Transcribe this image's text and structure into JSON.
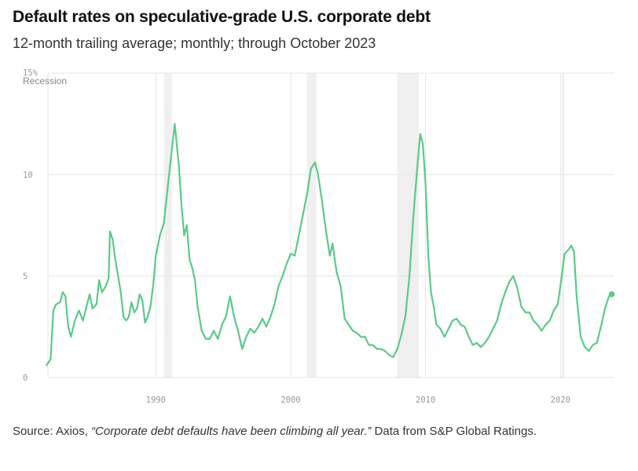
{
  "header": {
    "title": "Default rates on speculative-grade U.S. corporate debt",
    "subtitle": "12-month trailing average; monthly; through October 2023"
  },
  "source": {
    "prefix": "Source: Axios, ",
    "article": "“Corporate debt defaults have been climbing all year.”",
    "suffix": " Data from S&P Global Ratings."
  },
  "colors": {
    "line": "#5cc98a",
    "grid": "#e6e6e6",
    "recession": "#f0f0f0",
    "tick": "#999999"
  },
  "chart_data": {
    "type": "line",
    "title": "Default rates on speculative-grade U.S. corporate debt",
    "subtitle": "12-month trailing average; monthly; through October 2023",
    "ylim": [
      0,
      15
    ],
    "xlim": [
      1982,
      2024
    ],
    "y_ticks": [
      {
        "value": 0,
        "label": "0"
      },
      {
        "value": 5,
        "label": "5"
      },
      {
        "value": 10,
        "label": "10"
      },
      {
        "value": 15,
        "label": "15%"
      }
    ],
    "x_ticks": [
      {
        "value": 1990,
        "label": "1990"
      },
      {
        "value": 2000,
        "label": "2000"
      },
      {
        "value": 2010,
        "label": "2010"
      },
      {
        "value": 2020,
        "label": "2020"
      }
    ],
    "grid": true,
    "recession_label": "Recession",
    "recessions": [
      [
        1990.6,
        1991.2
      ],
      [
        2001.2,
        2001.9
      ],
      [
        2007.9,
        2009.5
      ],
      [
        2020.1,
        2020.3
      ]
    ],
    "series": [
      {
        "name": "",
        "end_marker": true,
        "points": [
          [
            1981.9,
            0.6
          ],
          [
            1982.2,
            0.9
          ],
          [
            1982.4,
            3.3
          ],
          [
            1982.6,
            3.6
          ],
          [
            1982.9,
            3.7
          ],
          [
            1983.1,
            4.2
          ],
          [
            1983.3,
            4.0
          ],
          [
            1983.5,
            2.5
          ],
          [
            1983.7,
            2.0
          ],
          [
            1984.0,
            2.8
          ],
          [
            1984.3,
            3.3
          ],
          [
            1984.6,
            2.8
          ],
          [
            1984.9,
            3.6
          ],
          [
            1985.1,
            4.1
          ],
          [
            1985.3,
            3.4
          ],
          [
            1985.6,
            3.6
          ],
          [
            1985.8,
            4.8
          ],
          [
            1986.0,
            4.2
          ],
          [
            1986.3,
            4.5
          ],
          [
            1986.5,
            4.9
          ],
          [
            1986.6,
            7.2
          ],
          [
            1986.8,
            6.8
          ],
          [
            1987.0,
            5.8
          ],
          [
            1987.2,
            5.0
          ],
          [
            1987.4,
            4.2
          ],
          [
            1987.6,
            3.0
          ],
          [
            1987.8,
            2.8
          ],
          [
            1988.0,
            3.0
          ],
          [
            1988.2,
            3.7
          ],
          [
            1988.4,
            3.2
          ],
          [
            1988.6,
            3.4
          ],
          [
            1988.8,
            4.1
          ],
          [
            1989.0,
            3.8
          ],
          [
            1989.2,
            2.7
          ],
          [
            1989.4,
            3.0
          ],
          [
            1989.6,
            3.5
          ],
          [
            1989.8,
            4.5
          ],
          [
            1990.0,
            6.0
          ],
          [
            1990.3,
            7.0
          ],
          [
            1990.6,
            7.6
          ],
          [
            1990.9,
            9.5
          ],
          [
            1991.2,
            11.3
          ],
          [
            1991.4,
            12.5
          ],
          [
            1991.7,
            10.5
          ],
          [
            1991.9,
            8.5
          ],
          [
            1992.1,
            7.0
          ],
          [
            1992.3,
            7.5
          ],
          [
            1992.5,
            5.8
          ],
          [
            1992.7,
            5.4
          ],
          [
            1992.9,
            4.8
          ],
          [
            1993.1,
            3.5
          ],
          [
            1993.4,
            2.3
          ],
          [
            1993.7,
            1.9
          ],
          [
            1994.0,
            1.9
          ],
          [
            1994.3,
            2.3
          ],
          [
            1994.6,
            1.9
          ],
          [
            1994.9,
            2.6
          ],
          [
            1995.2,
            3.0
          ],
          [
            1995.5,
            4.0
          ],
          [
            1995.8,
            3.0
          ],
          [
            1996.1,
            2.3
          ],
          [
            1996.4,
            1.4
          ],
          [
            1996.7,
            2.0
          ],
          [
            1997.0,
            2.4
          ],
          [
            1997.3,
            2.2
          ],
          [
            1997.6,
            2.5
          ],
          [
            1997.9,
            2.9
          ],
          [
            1998.2,
            2.5
          ],
          [
            1998.5,
            3.0
          ],
          [
            1998.8,
            3.6
          ],
          [
            1999.1,
            4.5
          ],
          [
            1999.4,
            5.0
          ],
          [
            1999.7,
            5.6
          ],
          [
            2000.0,
            6.1
          ],
          [
            2000.3,
            6.0
          ],
          [
            2000.6,
            7.0
          ],
          [
            2000.9,
            8.0
          ],
          [
            2001.2,
            9.0
          ],
          [
            2001.5,
            10.3
          ],
          [
            2001.8,
            10.6
          ],
          [
            2002.0,
            10.1
          ],
          [
            2002.3,
            8.8
          ],
          [
            2002.6,
            7.3
          ],
          [
            2002.9,
            6.0
          ],
          [
            2003.1,
            6.6
          ],
          [
            2003.4,
            5.2
          ],
          [
            2003.7,
            4.5
          ],
          [
            2004.0,
            2.9
          ],
          [
            2004.3,
            2.6
          ],
          [
            2004.6,
            2.3
          ],
          [
            2004.9,
            2.2
          ],
          [
            2005.2,
            2.0
          ],
          [
            2005.5,
            2.0
          ],
          [
            2005.8,
            1.6
          ],
          [
            2006.1,
            1.6
          ],
          [
            2006.4,
            1.4
          ],
          [
            2006.7,
            1.4
          ],
          [
            2007.0,
            1.3
          ],
          [
            2007.3,
            1.1
          ],
          [
            2007.6,
            1.0
          ],
          [
            2007.9,
            1.4
          ],
          [
            2008.2,
            2.1
          ],
          [
            2008.5,
            3.0
          ],
          [
            2008.8,
            5.0
          ],
          [
            2009.1,
            8.0
          ],
          [
            2009.4,
            10.5
          ],
          [
            2009.6,
            12.0
          ],
          [
            2009.8,
            11.5
          ],
          [
            2010.0,
            9.5
          ],
          [
            2010.2,
            6.0
          ],
          [
            2010.4,
            4.2
          ],
          [
            2010.6,
            3.5
          ],
          [
            2010.8,
            2.6
          ],
          [
            2011.1,
            2.4
          ],
          [
            2011.4,
            2.0
          ],
          [
            2011.7,
            2.4
          ],
          [
            2012.0,
            2.8
          ],
          [
            2012.3,
            2.9
          ],
          [
            2012.6,
            2.6
          ],
          [
            2012.9,
            2.5
          ],
          [
            2013.2,
            2.0
          ],
          [
            2013.5,
            1.6
          ],
          [
            2013.8,
            1.7
          ],
          [
            2014.1,
            1.5
          ],
          [
            2014.4,
            1.7
          ],
          [
            2014.7,
            2.0
          ],
          [
            2015.0,
            2.4
          ],
          [
            2015.3,
            2.8
          ],
          [
            2015.6,
            3.6
          ],
          [
            2015.9,
            4.2
          ],
          [
            2016.2,
            4.7
          ],
          [
            2016.5,
            5.0
          ],
          [
            2016.8,
            4.4
          ],
          [
            2017.1,
            3.5
          ],
          [
            2017.4,
            3.2
          ],
          [
            2017.7,
            3.2
          ],
          [
            2018.0,
            2.8
          ],
          [
            2018.3,
            2.6
          ],
          [
            2018.6,
            2.3
          ],
          [
            2018.9,
            2.6
          ],
          [
            2019.2,
            2.8
          ],
          [
            2019.5,
            3.3
          ],
          [
            2019.8,
            3.6
          ],
          [
            2020.1,
            5.0
          ],
          [
            2020.3,
            6.1
          ],
          [
            2020.6,
            6.3
          ],
          [
            2020.8,
            6.5
          ],
          [
            2021.0,
            6.2
          ],
          [
            2021.2,
            4.0
          ],
          [
            2021.5,
            2.0
          ],
          [
            2021.8,
            1.5
          ],
          [
            2022.1,
            1.3
          ],
          [
            2022.4,
            1.6
          ],
          [
            2022.7,
            1.7
          ],
          [
            2023.0,
            2.5
          ],
          [
            2023.3,
            3.4
          ],
          [
            2023.6,
            4.0
          ],
          [
            2023.8,
            4.1
          ]
        ]
      }
    ]
  }
}
